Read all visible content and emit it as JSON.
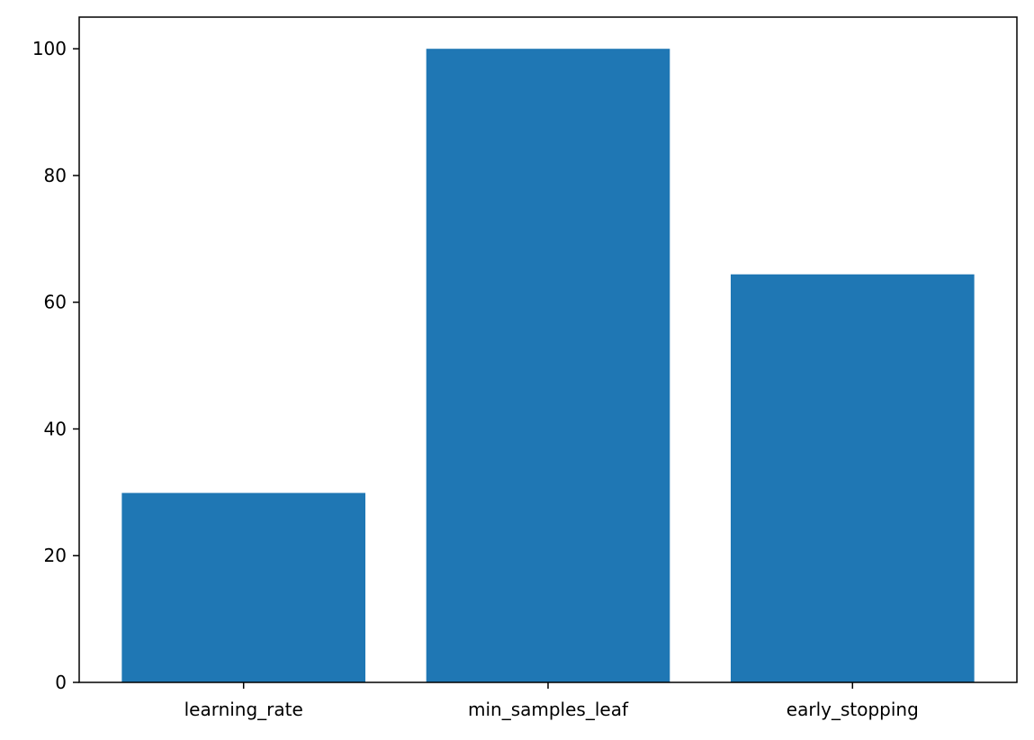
{
  "chart_data": {
    "type": "bar",
    "title": "",
    "xlabel": "",
    "ylabel": "",
    "categories": [
      "learning_rate",
      "min_samples_leaf",
      "early_stopping"
    ],
    "values": [
      29.9,
      100.0,
      64.4
    ],
    "ylim": [
      0,
      105
    ],
    "yticks": [
      0,
      20,
      40,
      60,
      80,
      100
    ],
    "grid": false,
    "legend": "none",
    "bar_color": "#1f77b4",
    "axis_color": "#000000",
    "background": "#ffffff"
  }
}
